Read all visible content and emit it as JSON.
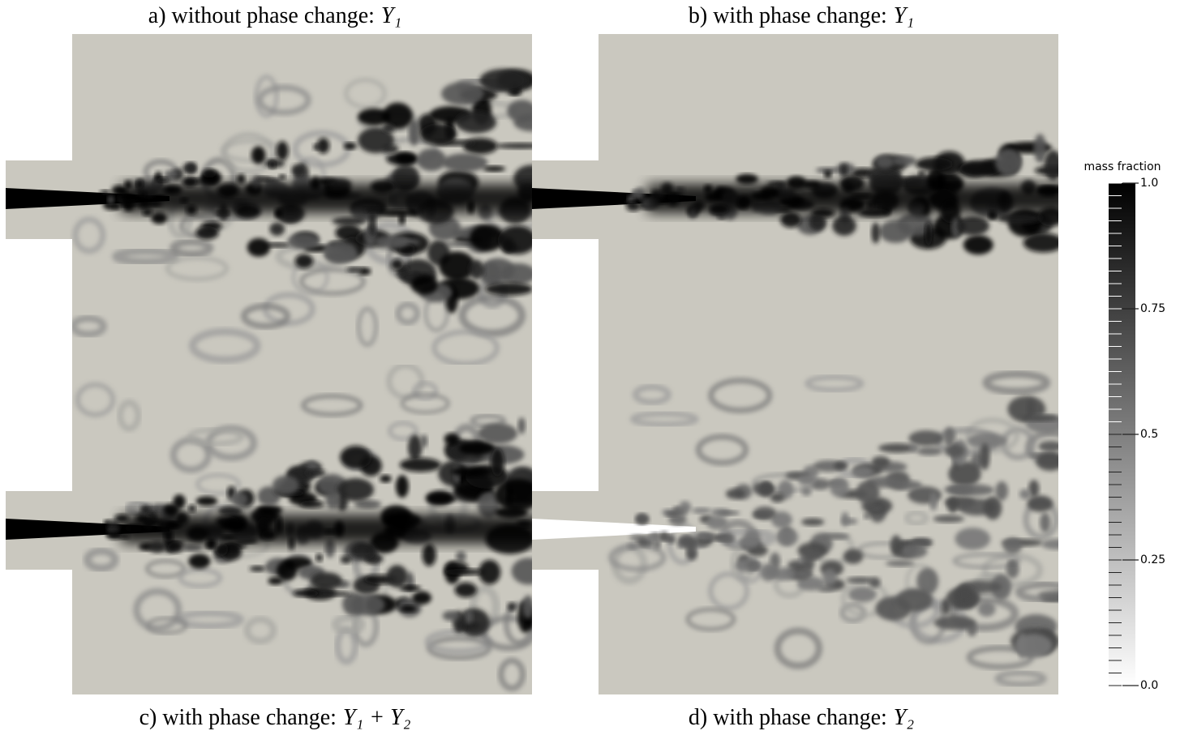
{
  "panels": [
    {
      "label": "a) without phase change:",
      "symbol": "Y₁"
    },
    {
      "label": "b) with phase change:",
      "symbol": "Y₁"
    },
    {
      "label": "c) with phase change:",
      "symbol": "Y₁ + Y₂"
    },
    {
      "label": "d) with phase change:",
      "symbol": "Y₂"
    }
  ],
  "colorbar": {
    "title": "mass fraction",
    "range": [
      0,
      1
    ],
    "ticks": [
      {
        "value": 1,
        "label": "1.0"
      },
      0.75,
      0.5,
      0.25,
      {
        "value": 0,
        "label": "0.0"
      }
    ]
  }
}
